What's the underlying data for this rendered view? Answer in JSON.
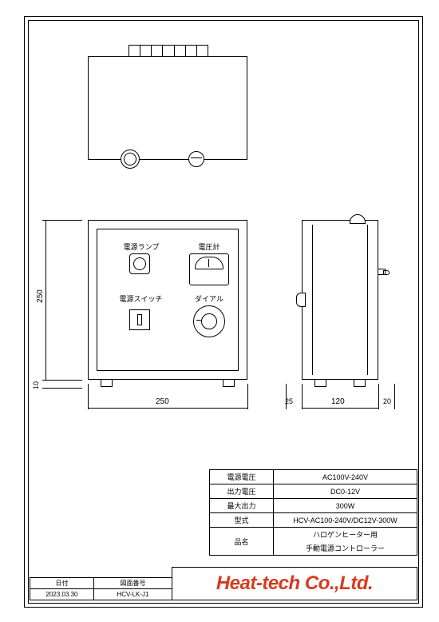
{
  "dimensions": {
    "height": "250",
    "foot": "10",
    "width": "250",
    "side_gap": "25",
    "depth": "120",
    "side_gap_r": "20"
  },
  "labels": {
    "lamp": "電源ランプ",
    "voltmeter": "電圧計",
    "switch": "電源スイッチ",
    "dial": "ダイアル"
  },
  "spec": {
    "rows": [
      {
        "label": "電源電圧",
        "value": "AC100V-240V"
      },
      {
        "label": "出力電圧",
        "value": "DC0-12V"
      },
      {
        "label": "最大出力",
        "value": "300W"
      },
      {
        "label": "型式",
        "value": "HCV-AC100-240V/DC12V-300W"
      }
    ],
    "name_label": "品名",
    "name_line1": "ハロゲンヒーター用",
    "name_line2": "手動電源コントローラー"
  },
  "title_block": {
    "date_hdr": "日付",
    "date": "2023.03.30",
    "dwg_hdr": "図面番号",
    "dwg": "HCV-LK-J1"
  },
  "company": "Heat-tech Co.,Ltd."
}
